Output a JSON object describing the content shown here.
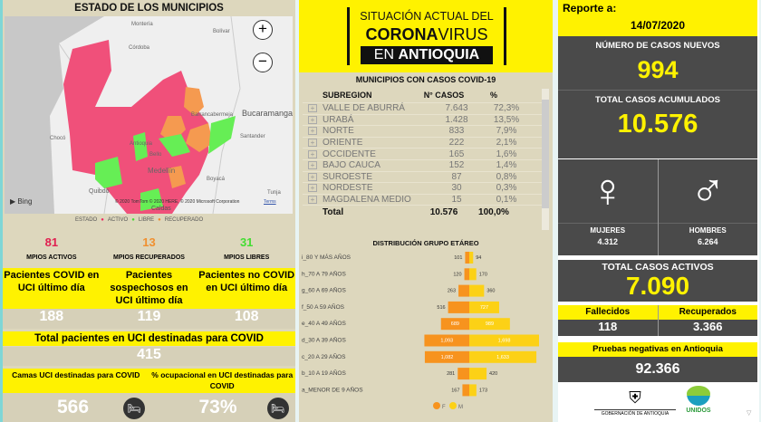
{
  "left": {
    "title": "ESTADO DE LOS MUNICIPIOS",
    "map": {
      "labels": [
        "Montería",
        "Bolívar",
        "Córdoba",
        "Bucaramanga",
        "Barrancabermeja",
        "Santander",
        "Chocó",
        "Antioquia",
        "Bello",
        "Medellín",
        "Boyacá",
        "Quibdó",
        "Tunja",
        "Caldas"
      ],
      "attribution": "© 2020 TomTom © 2020 HERE, © 2020 Microsoft Corporation",
      "terms": "Terms",
      "bing": "Bing",
      "zoom_in": "+",
      "zoom_out": "−"
    },
    "legend": {
      "title": "ESTADO",
      "items": [
        {
          "label": "ACTIVO",
          "color": "#ee2a62"
        },
        {
          "label": "LIBRE",
          "color": "#44dd33"
        },
        {
          "label": "RECUPERADO",
          "color": "#f08a30"
        }
      ]
    },
    "counts": [
      {
        "value": "81",
        "label": "MPIOS ACTIVOS",
        "color": "#e02050"
      },
      {
        "value": "13",
        "label": "MPIOS RECUPERADOS",
        "color": "#f09030"
      },
      {
        "value": "31",
        "label": "MPIOS LIBRES",
        "color": "#44dd33"
      }
    ],
    "uci": [
      {
        "label": "Pacientes COVID en UCI último día",
        "value": "188"
      },
      {
        "label": "Pacientes sospechosos en UCI último día",
        "value": "119"
      },
      {
        "label": "Pacientes no COVID en UCI último día",
        "value": "108"
      }
    ],
    "total_uci": {
      "label": "Total pacientes en UCI destinadas para COVID",
      "value": "415"
    },
    "beds": [
      {
        "label": "Camas UCI destinadas para COVID",
        "value": "566",
        "icon": "hospital-bed-icon"
      },
      {
        "label": "% ocupacional en UCI destinadas para COVID",
        "value": "73%",
        "icon": "hospital-bed-icon"
      }
    ]
  },
  "mid": {
    "banner": {
      "line1": "SITUACIÓN ACTUAL DEL",
      "line2a": "CORONA",
      "line2b": "VIRUS",
      "line3a": "EN ",
      "line3b": "ANTIOQUIA"
    },
    "table": {
      "title": "MUNICIPIOS CON CASOS COVID-19",
      "headers": [
        "SUBREGION",
        "N° CASOS",
        "%"
      ],
      "rows": [
        [
          "VALLE DE ABURRÁ",
          "7.643",
          "72,3%"
        ],
        [
          "URABÁ",
          "1.428",
          "13,5%"
        ],
        [
          "NORTE",
          "833",
          "7,9%"
        ],
        [
          "ORIENTE",
          "222",
          "2,1%"
        ],
        [
          "OCCIDENTE",
          "165",
          "1,6%"
        ],
        [
          "BAJO CAUCA",
          "152",
          "1,4%"
        ],
        [
          "SUROESTE",
          "87",
          "0,8%"
        ],
        [
          "NORDESTE",
          "30",
          "0,3%"
        ],
        [
          "MAGDALENA MEDIO",
          "15",
          "0,1%"
        ]
      ],
      "total": [
        "Total",
        "10.576",
        "100,0%"
      ]
    },
    "chart_data": {
      "type": "bar",
      "orientation": "horizontal-pyramid",
      "title": "DISTRIBUCIÓN GRUPO ETÁREO",
      "categories": [
        "i_80 Y MÁS AÑOS",
        "h_70 A 79 AÑOS",
        "g_60 A 69 AÑOS",
        "f_50 A 59 AÑOS",
        "e_40 A 49 AÑOS",
        "d_30 A 39 AÑOS",
        "c_20 A 29 AÑOS",
        "b_10 A 19 AÑOS",
        "a_MENOR DE 9 AÑOS"
      ],
      "series": [
        {
          "name": "F",
          "color": "#f7931e",
          "values": [
            101,
            120,
            263,
            516,
            689,
            1093,
            1082,
            281,
            167
          ],
          "labels": [
            "101",
            "120",
            "263",
            "516",
            "689",
            "1,093",
            "1,082",
            "281",
            "167"
          ]
        },
        {
          "name": "M",
          "color": "#fcd116",
          "values": [
            94,
            170,
            360,
            727,
            989,
            1698,
            1633,
            420,
            173
          ],
          "labels": [
            "94",
            "170",
            "360",
            "727",
            "989",
            "1,698",
            "1,633",
            "420",
            "173"
          ]
        }
      ],
      "legend": "bottom"
    }
  },
  "right": {
    "report_label": "Reporte a:",
    "date": "14/07/2020",
    "new_cases": {
      "label": "NÚMERO DE CASOS NUEVOS",
      "value": "994"
    },
    "cumulative": {
      "label": "TOTAL CASOS ACUMULADOS",
      "value": "10.576"
    },
    "women": {
      "label": "MUJERES",
      "value": "4.312"
    },
    "men": {
      "label": "HOMBRES",
      "value": "6.264"
    },
    "active": {
      "label": "TOTAL CASOS ACTIVOS",
      "value": "7.090"
    },
    "deaths": {
      "label": "Fallecidos",
      "value": "118"
    },
    "recovered": {
      "label": "Recuperados",
      "value": "3.366"
    },
    "negative": {
      "label": "Pruebas negativas en Antioquia",
      "value": "92.366"
    },
    "logos": {
      "gob": "GOBERNACIÓN DE ANTIOQUIA",
      "unidos": "UNIDOS"
    }
  }
}
